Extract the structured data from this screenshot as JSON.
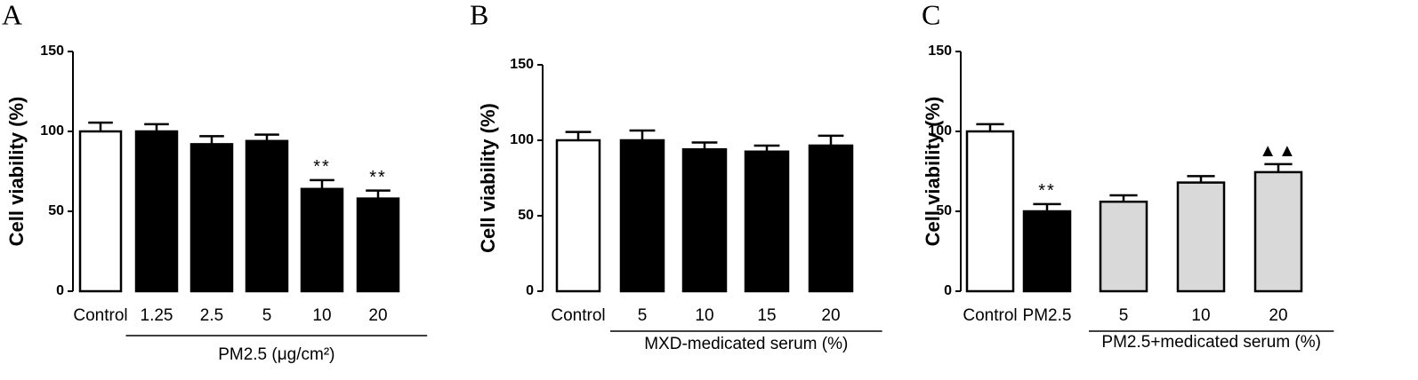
{
  "chart_data": [
    {
      "type": "bar",
      "panel": "A",
      "y_label": "Cell viability (%)",
      "categories": [
        "Control",
        "1.25",
        "2.5",
        "5",
        "10",
        "20"
      ],
      "values": [
        100,
        100,
        92,
        94,
        64,
        58
      ],
      "errors": [
        5.5,
        4.5,
        5,
        4,
        5.5,
        5
      ],
      "colors": [
        "#ffffff",
        "#000000",
        "#000000",
        "#000000",
        "#000000",
        "#000000"
      ],
      "ylim": [
        0,
        150
      ],
      "yticks": [
        0,
        50,
        100,
        150
      ],
      "group": {
        "label": "PM2.5 (μg/cm²)",
        "from": 1,
        "to": 5
      },
      "annotations": [
        {
          "category": 4,
          "text": "**"
        },
        {
          "category": 5,
          "text": "**"
        }
      ]
    },
    {
      "type": "bar",
      "panel": "B",
      "y_label": "Cell viability (%)",
      "categories": [
        "Control",
        "5",
        "10",
        "15",
        "20"
      ],
      "values": [
        100,
        100,
        94,
        92.5,
        96.5
      ],
      "errors": [
        5.5,
        6.5,
        4.5,
        4,
        6.5
      ],
      "colors": [
        "#ffffff",
        "#000000",
        "#000000",
        "#000000",
        "#000000"
      ],
      "ylim": [
        0,
        150
      ],
      "yticks": [
        0,
        50,
        100,
        150
      ],
      "group": {
        "label": "MXD-medicated serum (%)",
        "from": 1,
        "to": 4
      },
      "annotations": []
    },
    {
      "type": "bar",
      "panel": "C",
      "y_label": "Cell viability (%)",
      "categories": [
        "Control",
        "PM2.5",
        "5",
        "10",
        "20"
      ],
      "values": [
        100,
        50,
        56,
        68,
        74.5
      ],
      "errors": [
        4.5,
        4.5,
        4,
        4,
        5
      ],
      "colors": [
        "#ffffff",
        "#000000",
        "#d9d9d9",
        "#d9d9d9",
        "#d9d9d9"
      ],
      "ylim": [
        0,
        150
      ],
      "yticks": [
        0,
        50,
        100,
        150
      ],
      "group": {
        "label": "PM2.5+medicated serum (%)",
        "from": 2,
        "to": 4
      },
      "annotations": [
        {
          "category": 1,
          "text": "**"
        },
        {
          "category": 4,
          "text": "▲▲"
        }
      ]
    }
  ]
}
